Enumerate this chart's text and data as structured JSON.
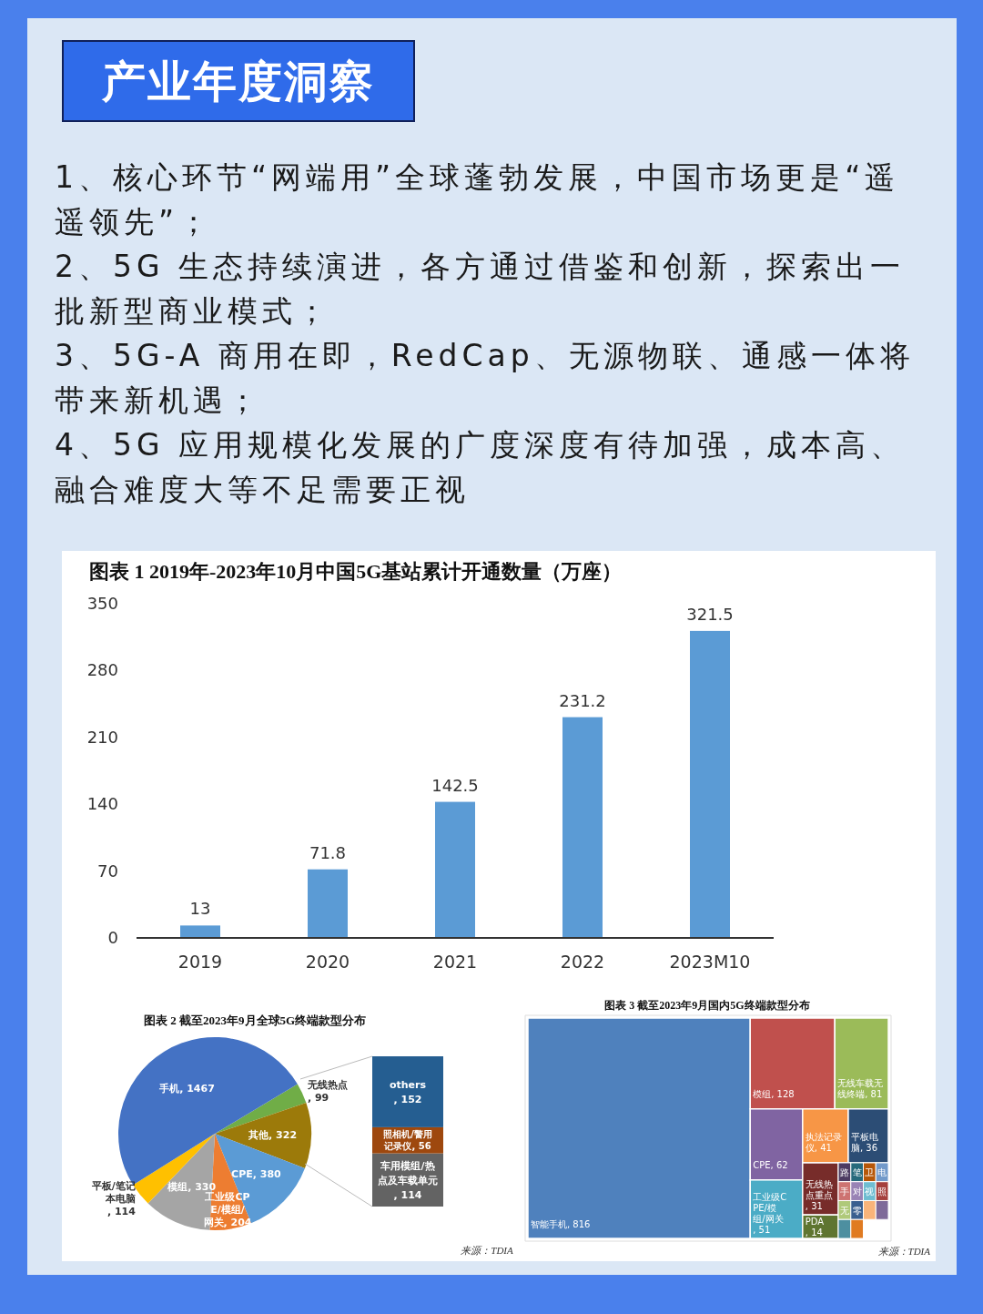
{
  "chart_data": [
    {
      "type": "other",
      "title": "产业年度洞察",
      "annotations": [
        "1、核心环节“网端用”全球蓬勃发展，中国市场更是“遥遥领先”；",
        "2、5G 生态持续演进，各方通过借鉴和创新，探索出一批新型商业模式；",
        "3、5G-A 商用在即，RedCap、无源物联、通感一体将带来新机遇；",
        "4、5G 应用规模化发展的广度深度有待加强，成本高、融合难度大等不足需要正视"
      ]
    },
    {
      "type": "bar",
      "title": "图表 1  2019年-2023年10月中国5G基站累计开通数量（万座）",
      "categories": [
        "2019",
        "2020",
        "2021",
        "2022",
        "2023M10"
      ],
      "values": [
        13,
        71.8,
        142.5,
        231.2,
        321.5
      ],
      "color": "#5b9bd5",
      "ylim": [
        0,
        350
      ],
      "yticks": [
        0,
        70,
        140,
        210,
        280,
        350
      ],
      "data_labels": true
    },
    {
      "type": "pie",
      "title": "图表 2  截至2023年9月全球5G终端款型分布",
      "categories": [
        "无线热点",
        "其他",
        "CPE",
        "工业级CPE/模组/网关",
        "模组",
        "平板/笔记本电脑",
        "手机"
      ],
      "values": [
        99,
        322,
        380,
        204,
        330,
        114,
        1467
      ],
      "value_labels": [
        ", 99",
        ", 322",
        ", 380",
        ", 204",
        ", 330",
        ", 114",
        ", 1467"
      ],
      "colors": [
        "#70ad47",
        "#9c7a0a",
        "#5b9bd5",
        "#ed7d31",
        "#a5a5a5",
        "#ffc000",
        "#4472c4"
      ],
      "data_labels": true,
      "annotations": [
        "来源：TDIA"
      ]
    },
    {
      "type": "bar",
      "stacked": true,
      "categories": [
        null
      ],
      "data_labels": true,
      "series": [
        {
          "name": "车用模组/热点及车载单元",
          "color": "#636363",
          "values": [
            114
          ],
          "value_labels": [
            ", 114"
          ]
        },
        {
          "name": "照相机/警用记录仪",
          "color": "#9e480e",
          "values": [
            56
          ],
          "value_labels": [
            ", 56"
          ]
        },
        {
          "name": "others",
          "color": "#255e91",
          "values": [
            152
          ],
          "value_labels": [
            ", 152"
          ]
        }
      ]
    },
    {
      "type": "other",
      "title": "图表 3  截至2023年9月国内5G终端款型分布",
      "data_labels": true,
      "categories": [
        "智能手机",
        "模组",
        "无线车载无线终端",
        "CPE",
        "工业级CPE/模组/网关",
        "执法记录仪",
        "平板电脑",
        "无线热点重点",
        "PDA",
        "路",
        "笔",
        "卫",
        "电",
        "手",
        "对",
        "视",
        "照",
        "无",
        "零",
        null,
        null,
        null,
        null
      ],
      "values": [
        816,
        128,
        81,
        62,
        51,
        41,
        36,
        31,
        14,
        null,
        null,
        null,
        null,
        null,
        null,
        null,
        null,
        null,
        null,
        null,
        null,
        null,
        null
      ],
      "value_labels": [
        ", 816",
        ", 128",
        ", 81",
        ", 62",
        ", 51",
        ", 41",
        ", 36",
        ", 31",
        ", 14",
        null,
        null,
        null,
        null,
        null,
        null,
        null,
        null,
        null,
        null,
        null,
        null,
        null,
        null
      ],
      "colors": [
        "#4f81bd",
        "#c0504d",
        "#9bbb59",
        "#8064a2",
        "#4bacc6",
        "#f79646",
        "#2c4d75",
        "#772c2a",
        "#5f7530",
        "#4d3b62",
        "#276a7c",
        "#b65708",
        "#729aca",
        "#cd7371",
        "#9983b5",
        "#6fbdd1",
        "#a5403d",
        "#afc97a",
        "#3a5f8f",
        "#f9b47a",
        "#7f6a99",
        "#4d8fa0",
        "#e07b22"
      ],
      "annotations": [
        "来源：TDIA"
      ]
    }
  ]
}
